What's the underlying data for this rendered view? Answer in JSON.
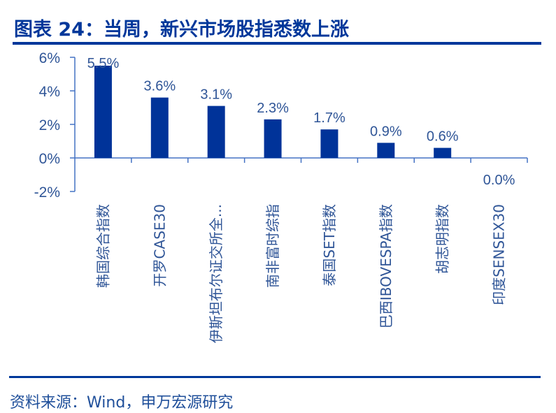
{
  "header": {
    "title": "图表 24：当周，新兴市场股指悉数上涨"
  },
  "footer": {
    "source": "资料来源：Wind，申万宏源研究"
  },
  "colors": {
    "bar": "#003399",
    "text": "#2f5597",
    "axis": "#4472c4",
    "title": "#00379a"
  },
  "chart_data": {
    "type": "bar",
    "title": "图表 24：当周，新兴市场股指悉数上涨",
    "xlabel": "",
    "ylabel": "",
    "categories": [
      "韩国综合指数",
      "开罗CASE30",
      "伊斯坦布尔证交所全...",
      "南非富时综指",
      "泰国SET指数",
      "巴西IBOVESPA指数",
      "胡志明指数",
      "印度SENSEX30"
    ],
    "values": [
      5.5,
      3.6,
      3.1,
      2.3,
      1.7,
      0.9,
      0.6,
      0.0
    ],
    "value_labels": [
      "5.5%",
      "3.6%",
      "3.1%",
      "2.3%",
      "1.7%",
      "0.9%",
      "0.6%",
      "0.0%"
    ],
    "yticks": [
      "6%",
      "4%",
      "2%",
      "0%",
      "-2%"
    ],
    "ytick_values": [
      6,
      4,
      2,
      0,
      -2
    ],
    "ylim": [
      -2,
      6
    ],
    "unit": "%",
    "grid": false,
    "legend": null
  }
}
